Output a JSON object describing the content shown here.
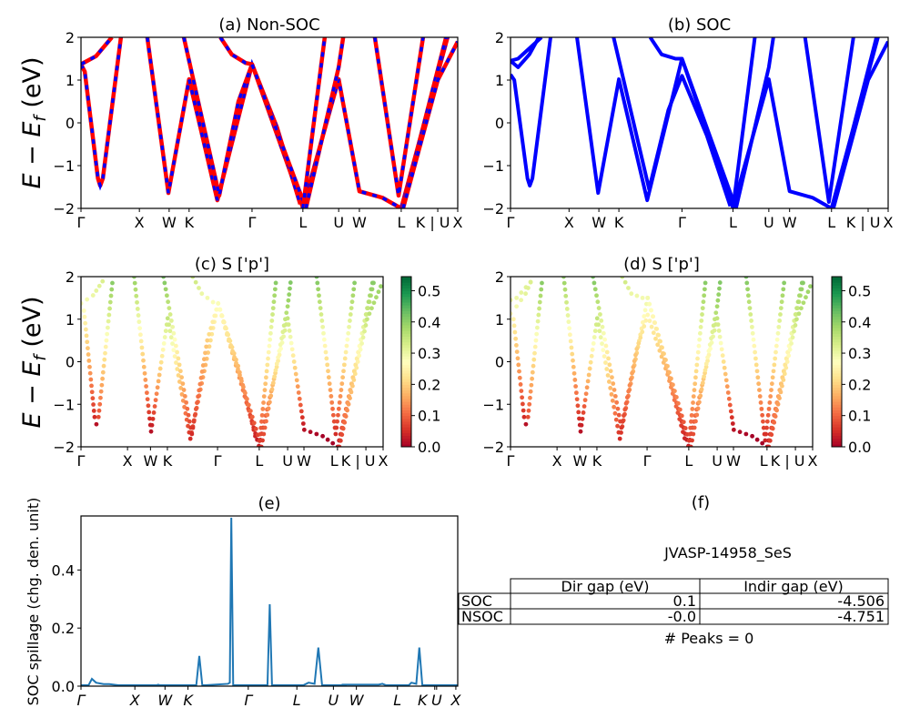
{
  "colors": {
    "nonsoc_solid": "#ff0000",
    "nonsoc_dash": "#0000ff",
    "soc": "#0000ff",
    "spillage": "#1f77b4",
    "colormap": "RdYlGn"
  },
  "ylabel_energy": {
    "main": "E − E",
    "sub": "f",
    "unit": " (eV)"
  },
  "chart_data": [
    {
      "id": "a",
      "type": "line",
      "title": "(a) Non-SOC",
      "ylim": [
        -2,
        2
      ],
      "yticks": [
        "2",
        "1",
        "0",
        "−1",
        "−2"
      ],
      "ytick_values": [
        2,
        1,
        0,
        -1,
        -2
      ],
      "kpath_ticks": [
        {
          "k": 0,
          "label": "Γ"
        },
        {
          "k": 0.155,
          "label": "X"
        },
        {
          "k": 0.234,
          "label": "W"
        },
        {
          "k": 0.287,
          "label": "K"
        },
        {
          "k": 0.454,
          "label": "Γ"
        },
        {
          "k": 0.589,
          "label": "L"
        },
        {
          "k": 0.684,
          "label": "U"
        },
        {
          "k": 0.739,
          "label": "W"
        },
        {
          "k": 0.85,
          "label": "L"
        },
        {
          "k": 0.947,
          "label": "K | U"
        },
        {
          "k": 1.0,
          "label": "X"
        }
      ],
      "bands": "nonsoc"
    },
    {
      "id": "b",
      "type": "line",
      "title": "(b) SOC",
      "ylim": [
        -2,
        2
      ],
      "yticks": [
        "2",
        "1",
        "0",
        "−1",
        "−2"
      ],
      "ytick_values": [
        2,
        1,
        0,
        -1,
        -2
      ],
      "kpath_ticks": [
        {
          "k": 0,
          "label": "Γ"
        },
        {
          "k": 0.155,
          "label": "X"
        },
        {
          "k": 0.234,
          "label": "W"
        },
        {
          "k": 0.287,
          "label": "K"
        },
        {
          "k": 0.454,
          "label": "Γ"
        },
        {
          "k": 0.589,
          "label": "L"
        },
        {
          "k": 0.684,
          "label": "U"
        },
        {
          "k": 0.739,
          "label": "W"
        },
        {
          "k": 0.85,
          "label": "L"
        },
        {
          "k": 0.947,
          "label": "K | U"
        },
        {
          "k": 1.0,
          "label": "X"
        }
      ],
      "bands": "soc"
    },
    {
      "id": "c",
      "type": "scatter",
      "title": "(c)  S ['p']",
      "ylim": [
        -2,
        2
      ],
      "yticks": [
        "2",
        "1",
        "0",
        "−1",
        "−2"
      ],
      "ytick_values": [
        2,
        1,
        0,
        -1,
        -2
      ],
      "kpath_ticks": [
        {
          "k": 0,
          "label": "Γ"
        },
        {
          "k": 0.154,
          "label": "X"
        },
        {
          "k": 0.23,
          "label": "W"
        },
        {
          "k": 0.286,
          "label": "K"
        },
        {
          "k": 0.452,
          "label": "Γ"
        },
        {
          "k": 0.59,
          "label": "L"
        },
        {
          "k": 0.684,
          "label": "U"
        },
        {
          "k": 0.738,
          "label": "W"
        },
        {
          "k": 0.849,
          "label": "L"
        },
        {
          "k": 0.943,
          "label": "K | U"
        },
        {
          "k": 1.0,
          "label": "X"
        }
      ],
      "bands": "nonsoc",
      "colorbar": {
        "min": 0,
        "max": 0.545,
        "ticks": [
          "0.0",
          "0.1",
          "0.2",
          "0.3",
          "0.4",
          "0.5"
        ],
        "tick_values": [
          0,
          0.1,
          0.2,
          0.3,
          0.4,
          0.5
        ]
      }
    },
    {
      "id": "d",
      "type": "scatter",
      "title": "(d) S ['p']",
      "ylim": [
        -2,
        2
      ],
      "yticks": [
        "2",
        "1",
        "0",
        "−1",
        "−2"
      ],
      "ytick_values": [
        2,
        1,
        0,
        -1,
        -2
      ],
      "kpath_ticks": [
        {
          "k": 0,
          "label": "Γ"
        },
        {
          "k": 0.154,
          "label": "X"
        },
        {
          "k": 0.23,
          "label": "W"
        },
        {
          "k": 0.286,
          "label": "K"
        },
        {
          "k": 0.452,
          "label": "Γ"
        },
        {
          "k": 0.59,
          "label": "L"
        },
        {
          "k": 0.684,
          "label": "U"
        },
        {
          "k": 0.738,
          "label": "W"
        },
        {
          "k": 0.849,
          "label": "L"
        },
        {
          "k": 0.943,
          "label": "K | U"
        },
        {
          "k": 1.0,
          "label": "X"
        }
      ],
      "bands": "soc",
      "colorbar": {
        "min": 0,
        "max": 0.545,
        "ticks": [
          "0.0",
          "0.1",
          "0.2",
          "0.3",
          "0.4",
          "0.5"
        ],
        "tick_values": [
          0,
          0.1,
          0.2,
          0.3,
          0.4,
          0.5
        ]
      }
    },
    {
      "id": "e",
      "type": "line",
      "title": "(e)",
      "ylabel": "SOC spillage (chg. den. unit)",
      "ylim": [
        0,
        0.586
      ],
      "yticks": [
        "0.0",
        "0.2",
        "0.4"
      ],
      "ytick_values": [
        0,
        0.2,
        0.4
      ],
      "kpath_ticks": [
        {
          "k": 0,
          "label": "Γ"
        },
        {
          "k": 0.143,
          "label": "X"
        },
        {
          "k": 0.223,
          "label": "W"
        },
        {
          "k": 0.284,
          "label": "K"
        },
        {
          "k": 0.444,
          "label": "Γ"
        },
        {
          "k": 0.573,
          "label": "L"
        },
        {
          "k": 0.67,
          "label": "U"
        },
        {
          "k": 0.731,
          "label": "W"
        },
        {
          "k": 0.84,
          "label": "L"
        },
        {
          "k": 0.939,
          "label": "K"
        },
        {
          "k": 0.944,
          "label": "U"
        },
        {
          "k": 0.995,
          "label": "X"
        }
      ],
      "x": [
        0,
        0.02,
        0.029,
        0.04,
        0.06,
        0.075,
        0.1,
        0.2,
        0.205,
        0.21,
        0.3,
        0.306,
        0.314,
        0.322,
        0.33,
        0.39,
        0.395,
        0.399,
        0.404,
        0.41,
        0.49,
        0.495,
        0.501,
        0.507,
        0.51,
        0.59,
        0.604,
        0.62,
        0.63,
        0.64,
        0.7,
        0.698,
        0.79,
        0.8,
        0.81,
        0.87,
        0.877,
        0.89,
        0.898,
        0.906,
        1.0
      ],
      "y": [
        0.003,
        0.003,
        0.025,
        0.012,
        0.007,
        0.007,
        0.003,
        0.003,
        0.005,
        0.003,
        0.003,
        0.003,
        0.104,
        0.003,
        0.003,
        0.008,
        0.012,
        0.58,
        0.003,
        0.003,
        0.003,
        0.003,
        0.282,
        0.003,
        0.003,
        0.003,
        0.012,
        0.008,
        0.133,
        0.003,
        0.003,
        0.005,
        0.005,
        0.008,
        0.003,
        0.003,
        0.012,
        0.008,
        0.133,
        0.003,
        0.003
      ]
    }
  ],
  "bands": {
    "nonsoc": [
      {
        "k": [
          0,
          0.01,
          0.045,
          0.051,
          0.058,
          0.106
        ],
        "E": [
          1.37,
          1.2,
          -1.3,
          -1.47,
          -1.3,
          2.0
        ],
        "w": [
          0.28,
          0.27,
          0.05,
          0.02,
          0.08,
          0.42
        ]
      },
      {
        "k": [
          0,
          0.04,
          0.082
        ],
        "E": [
          1.37,
          1.56,
          2.0
        ],
        "w": [
          0.28,
          0.3,
          0.33
        ]
      },
      {
        "k": [
          0.176,
          0.232,
          0.287,
          0.362,
          0.454,
          0.589,
          0.684,
          0.739,
          0.8,
          0.85,
          0.973
        ],
        "E": [
          2,
          -1.64,
          1.02,
          -1.81,
          1.37,
          -1.98,
          1.02,
          -1.6,
          -1.75,
          -2,
          2
        ],
        "w": [
          0.4,
          0.02,
          0.35,
          0.05,
          0.28,
          0.02,
          0.35,
          0.02,
          0.0,
          0.0,
          0.42
        ]
      },
      {
        "k": [
          0.273,
          0.367,
          0.418,
          0.454,
          0.52,
          0.582
        ],
        "E": [
          2,
          -1.7,
          0.5,
          1.37,
          -0.1,
          -1.9
        ],
        "w": [
          0.42,
          0.05,
          0.2,
          0.28,
          0.18,
          0.03
        ]
      },
      {
        "k": [
          0.37,
          0.4,
          0.437,
          0.454,
          0.597
        ],
        "E": [
          2,
          1.6,
          1.4,
          1.37,
          -2
        ],
        "w": [
          0.35,
          0.3,
          0.28,
          0.28,
          0.05
        ]
      },
      {
        "k": [
          0.589,
          0.647
        ],
        "E": [
          -2,
          2
        ],
        "w": [
          0.05,
          0.42
        ]
      },
      {
        "k": [
          0.597,
          0.684,
          0.696
        ],
        "E": [
          -2,
          1.3,
          2
        ],
        "w": [
          0.05,
          0.38,
          0.42
        ]
      },
      {
        "k": [
          0.78,
          0.843,
          0.908
        ],
        "E": [
          2,
          -1.7,
          2
        ],
        "w": [
          0.42,
          0.05,
          0.42
        ]
      },
      {
        "k": [
          0.853,
          0.969
        ],
        "E": [
          -2,
          2
        ],
        "w": [
          0.05,
          0.42
        ]
      },
      {
        "k": [
          0.855,
          0.947,
          1.0
        ],
        "E": [
          -2,
          1.0,
          1.9
        ],
        "w": [
          0.05,
          0.35,
          0.4
        ]
      }
    ],
    "soc": [
      {
        "k": [
          0,
          0.01,
          0.045,
          0.051,
          0.058,
          0.106
        ],
        "E": [
          1.13,
          1.0,
          -1.3,
          -1.47,
          -1.3,
          2.0
        ],
        "w": [
          0.26,
          0.25,
          0.05,
          0.02,
          0.08,
          0.42
        ]
      },
      {
        "k": [
          0,
          0.02,
          0.082
        ],
        "E": [
          1.45,
          1.5,
          2.0
        ],
        "w": [
          0.3,
          0.3,
          0.33
        ]
      },
      {
        "k": [
          0,
          0.02,
          0.05,
          0.075
        ],
        "E": [
          1.45,
          1.3,
          1.6,
          2.0
        ],
        "w": [
          0.3,
          0.29,
          0.31,
          0.33
        ]
      },
      {
        "k": [
          0.176,
          0.232,
          0.287,
          0.362,
          0.454,
          0.589,
          0.684,
          0.739,
          0.8,
          0.85,
          0.973
        ],
        "E": [
          2,
          -1.64,
          1.02,
          -1.81,
          1.5,
          -1.98,
          1.02,
          -1.6,
          -1.75,
          -2,
          2
        ],
        "w": [
          0.4,
          0.02,
          0.35,
          0.05,
          0.3,
          0.02,
          0.35,
          0.02,
          0.0,
          0.0,
          0.42
        ]
      },
      {
        "k": [
          0.273,
          0.367,
          0.418,
          0.454,
          0.52,
          0.582
        ],
        "E": [
          2,
          -1.55,
          0.3,
          1.1,
          -0.3,
          -1.95
        ],
        "w": [
          0.42,
          0.06,
          0.2,
          0.26,
          0.16,
          0.03
        ]
      },
      {
        "k": [
          0.37,
          0.4,
          0.437,
          0.454,
          0.597
        ],
        "E": [
          2,
          1.6,
          1.5,
          1.5,
          -2
        ],
        "w": [
          0.35,
          0.3,
          0.29,
          0.29,
          0.05
        ]
      },
      {
        "k": [
          0.589,
          0.647
        ],
        "E": [
          -2,
          2
        ],
        "w": [
          0.05,
          0.42
        ]
      },
      {
        "k": [
          0.597,
          0.684,
          0.696
        ],
        "E": [
          -2,
          1.3,
          2
        ],
        "w": [
          0.05,
          0.38,
          0.42
        ]
      },
      {
        "k": [
          0.78,
          0.843,
          0.908
        ],
        "E": [
          2,
          -1.85,
          2
        ],
        "w": [
          0.42,
          0.04,
          0.42
        ]
      },
      {
        "k": [
          0.853,
          0.969
        ],
        "E": [
          -2,
          2
        ],
        "w": [
          0.05,
          0.42
        ]
      },
      {
        "k": [
          0.855,
          0.947,
          1.0
        ],
        "E": [
          -2,
          1.0,
          1.9
        ],
        "w": [
          0.05,
          0.35,
          0.4
        ]
      }
    ]
  },
  "panel_f": {
    "title": "(f)",
    "material": "JVASP-14958_SeS",
    "table": {
      "columns": [
        "Dir gap (eV)",
        "Indir gap (eV)"
      ],
      "rows": [
        {
          "label": "SOC",
          "dir": "0.1",
          "indir": "-4.506"
        },
        {
          "label": "NSOC",
          "dir": "-0.0",
          "indir": "-4.751"
        }
      ]
    },
    "peaks": "# Peaks = 0"
  }
}
